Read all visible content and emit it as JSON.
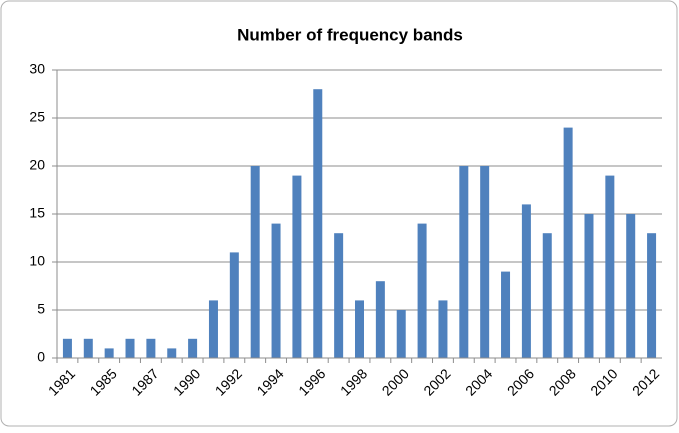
{
  "chart_data": {
    "type": "bar",
    "title": "Number of frequency bands",
    "categories": [
      "1981",
      null,
      "1985",
      null,
      "1987",
      null,
      "1990",
      null,
      "1992",
      null,
      "1994",
      null,
      "1996",
      null,
      "1998",
      null,
      "2000",
      null,
      "2002",
      null,
      "2004",
      null,
      "2006",
      null,
      "2008",
      null,
      "2010",
      null,
      "2012"
    ],
    "values": [
      2,
      2,
      1,
      2,
      2,
      1,
      2,
      6,
      11,
      20,
      14,
      19,
      28,
      13,
      6,
      8,
      5,
      14,
      6,
      20,
      20,
      9,
      16,
      13,
      24,
      15,
      19,
      15,
      13
    ],
    "color": "#4f81bd",
    "ylim": [
      0,
      30
    ],
    "yticks": [
      0,
      5,
      10,
      15,
      20,
      25,
      30
    ],
    "grid": true
  }
}
